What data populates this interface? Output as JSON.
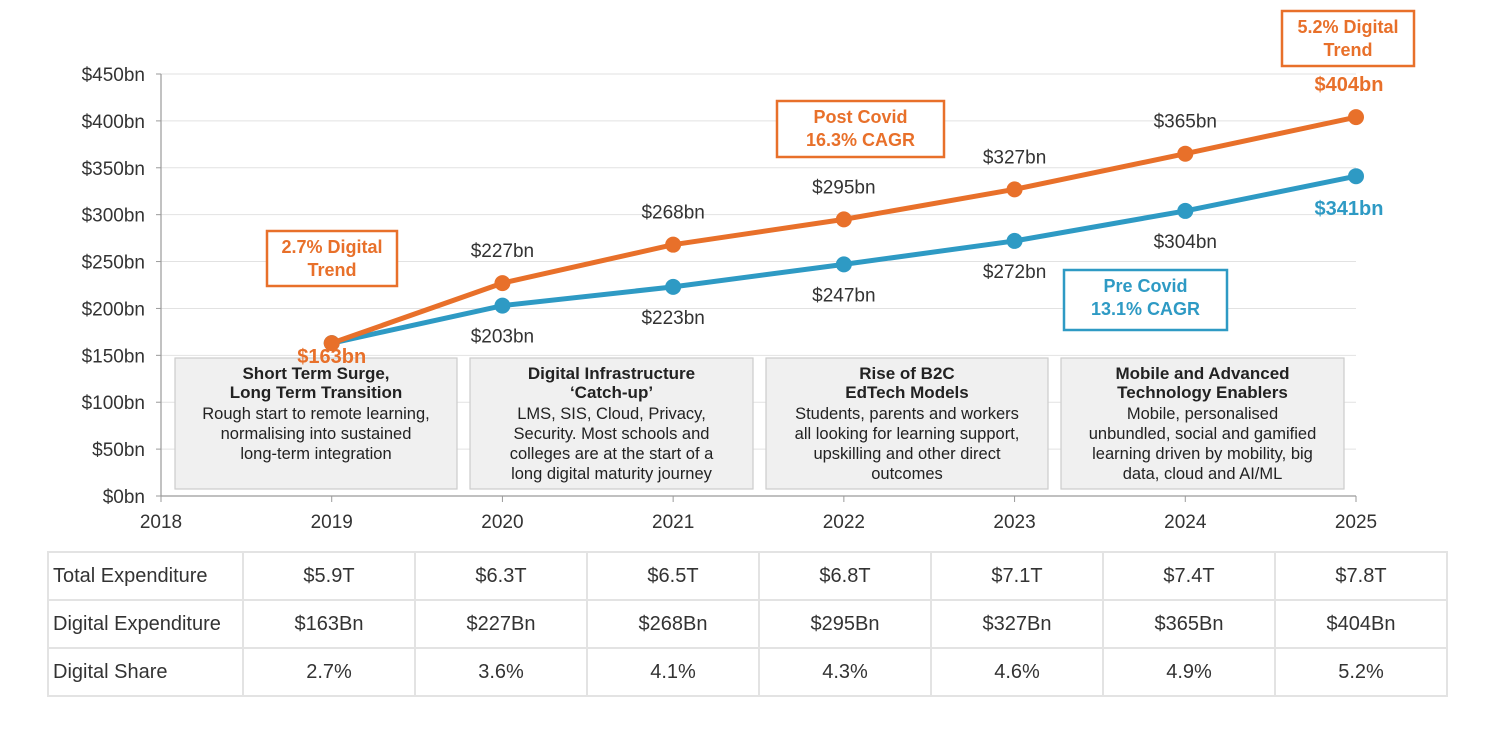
{
  "chart_data": {
    "type": "line",
    "x": [
      2019,
      2020,
      2021,
      2022,
      2023,
      2024,
      2025
    ],
    "x_ticks": [
      "2018",
      "2019",
      "2020",
      "2021",
      "2022",
      "2023",
      "2024",
      "2025"
    ],
    "xlim": [
      2018,
      2025
    ],
    "ylim": [
      0,
      450
    ],
    "y_ticks": [
      0,
      50,
      100,
      150,
      200,
      250,
      300,
      350,
      400,
      450
    ],
    "y_tick_labels": [
      "$0bn",
      "$50bn",
      "$100bn",
      "$150bn",
      "$200bn",
      "$250bn",
      "$300bn",
      "$350bn",
      "$400bn",
      "$450bn"
    ],
    "grid": true,
    "series": [
      {
        "key": "post",
        "color": "#e8702a",
        "values": [
          163,
          227,
          268,
          295,
          327,
          365,
          404
        ],
        "labels": [
          "$163bn",
          "$227bn",
          "$268bn",
          "$295bn",
          "$327bn",
          "$365bn",
          "$404bn"
        ]
      },
      {
        "key": "pre",
        "color": "#2e9ac4",
        "values": [
          163,
          203,
          223,
          247,
          272,
          304,
          341
        ],
        "labels": [
          "",
          "$203bn",
          "$223bn",
          "$247bn",
          "$272bn",
          "$304bn",
          "$341bn"
        ]
      }
    ],
    "callouts": [
      {
        "key": "trend-2019",
        "lines": [
          "2.7% Digital",
          "Trend"
        ],
        "color": "#e8702a"
      },
      {
        "key": "post-covid",
        "lines": [
          "Post Covid",
          "16.3% CAGR"
        ],
        "color": "#e8702a"
      },
      {
        "key": "trend-2025",
        "lines": [
          "5.2% Digital",
          "Trend"
        ],
        "color": "#e8702a"
      },
      {
        "key": "pre-covid",
        "lines": [
          "Pre Covid",
          "13.1% CAGR"
        ],
        "color": "#2e9ac4"
      }
    ],
    "phases": [
      {
        "title": [
          "Short Term Surge,",
          "Long Term Transition"
        ],
        "body": [
          "Rough start to remote learning,",
          "normalising into sustained",
          "long-term integration"
        ]
      },
      {
        "title": [
          "Digital Infrastructure",
          "‘Catch-up’"
        ],
        "body": [
          "LMS, SIS, Cloud, Privacy,",
          "Security. Most schools and",
          "colleges are at the start of a",
          "long digital maturity journey"
        ]
      },
      {
        "title": [
          "Rise of B2C",
          "EdTech Models"
        ],
        "body": [
          "Students, parents and workers",
          "all looking for learning support,",
          "upskilling and other direct",
          "outcomes"
        ]
      },
      {
        "title": [
          "Mobile and Advanced",
          "Technology Enablers"
        ],
        "body": [
          "Mobile, personalised",
          "unbundled, social and gamified",
          "learning driven by mobility, big",
          "data, cloud and AI/ML"
        ]
      }
    ]
  },
  "table": {
    "rows": [
      {
        "label": "Total Expenditure",
        "cells": [
          "$5.9T",
          "$6.3T",
          "$6.5T",
          "$6.8T",
          "$7.1T",
          "$7.4T",
          "$7.8T"
        ]
      },
      {
        "label": "Digital Expenditure",
        "cells": [
          "$163Bn",
          "$227Bn",
          "$268Bn",
          "$295Bn",
          "$327Bn",
          "$365Bn",
          "$404Bn"
        ]
      },
      {
        "label": "Digital Share",
        "cells": [
          "2.7%",
          "3.6%",
          "4.1%",
          "4.3%",
          "4.6%",
          "4.9%",
          "5.2%"
        ]
      }
    ]
  }
}
